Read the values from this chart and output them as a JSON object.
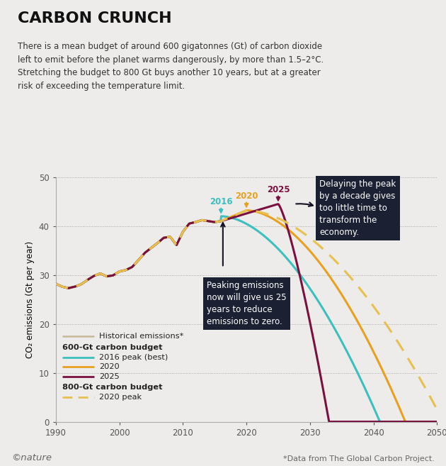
{
  "title": "CARBON CRUNCH",
  "subtitle": "There is a mean budget of around 600 gigatonnes (Gt) of carbon dioxide\nleft to emit before the planet warms dangerously, by more than 1.5–2°C.\nStretching the budget to 800 Gt buys another 10 years, but at a greater\nrisk of exceeding the temperature limit.",
  "ylabel": "CO₂ emissions (Gt per year)",
  "xlim": [
    1990,
    2050
  ],
  "ylim": [
    0,
    50
  ],
  "yticks": [
    0,
    10,
    20,
    30,
    40,
    50
  ],
  "xticks": [
    1990,
    2000,
    2010,
    2020,
    2030,
    2040,
    2050
  ],
  "bg_color": "#eeecea",
  "nature_copyright": "©nature",
  "footnote": "*Data from The Global Carbon Project.",
  "historical_color": "#c8b89a",
  "color_2016": "#3bbfbf",
  "color_2020": "#e8a020",
  "color_2025": "#7a1040",
  "color_800gt": "#e8c050",
  "ann_box_color": "#1c2033",
  "ann_text_color": "#ffffff",
  "legend_hist_label": "Historical emissions*",
  "legend_600gt_label": "600-Gt carbon budget",
  "legend_2016_label": "2016 peak (best)",
  "legend_2020_label": "2020",
  "legend_2025_label": "2025",
  "legend_800gt_label": "800-Gt carbon budget",
  "legend_800gt_2020_label": "2020 peak",
  "hist_years": [
    1990,
    1991,
    1992,
    1993,
    1994,
    1995,
    1996,
    1997,
    1998,
    1999,
    2000,
    2001,
    2002,
    2003,
    2004,
    2005,
    2006,
    2007,
    2008,
    2009,
    2010,
    2011,
    2012,
    2013,
    2014,
    2015,
    2016
  ],
  "hist_vals": [
    28.2,
    27.6,
    27.3,
    27.6,
    28.1,
    29.0,
    29.8,
    30.3,
    29.7,
    29.9,
    30.7,
    31.0,
    31.6,
    33.0,
    34.5,
    35.5,
    36.5,
    37.6,
    37.8,
    36.1,
    38.8,
    40.5,
    40.8,
    41.2,
    41.0,
    40.8,
    41.0
  ],
  "peak_2016": {
    "peak_year": 2016,
    "peak_val": 42.0,
    "zero_year": 2041,
    "exp": 1.8
  },
  "peak_2020": {
    "peak_year": 2020,
    "peak_val": 43.2,
    "zero_year": 2045,
    "exp": 1.8
  },
  "peak_2025": {
    "peak_year": 2025,
    "peak_val": 44.5,
    "zero_year": 2033,
    "exp": 1.3
  },
  "peak_800gt": {
    "peak_year": 2020,
    "peak_val": 43.2,
    "zero_year": 2051,
    "exp": 1.8
  }
}
